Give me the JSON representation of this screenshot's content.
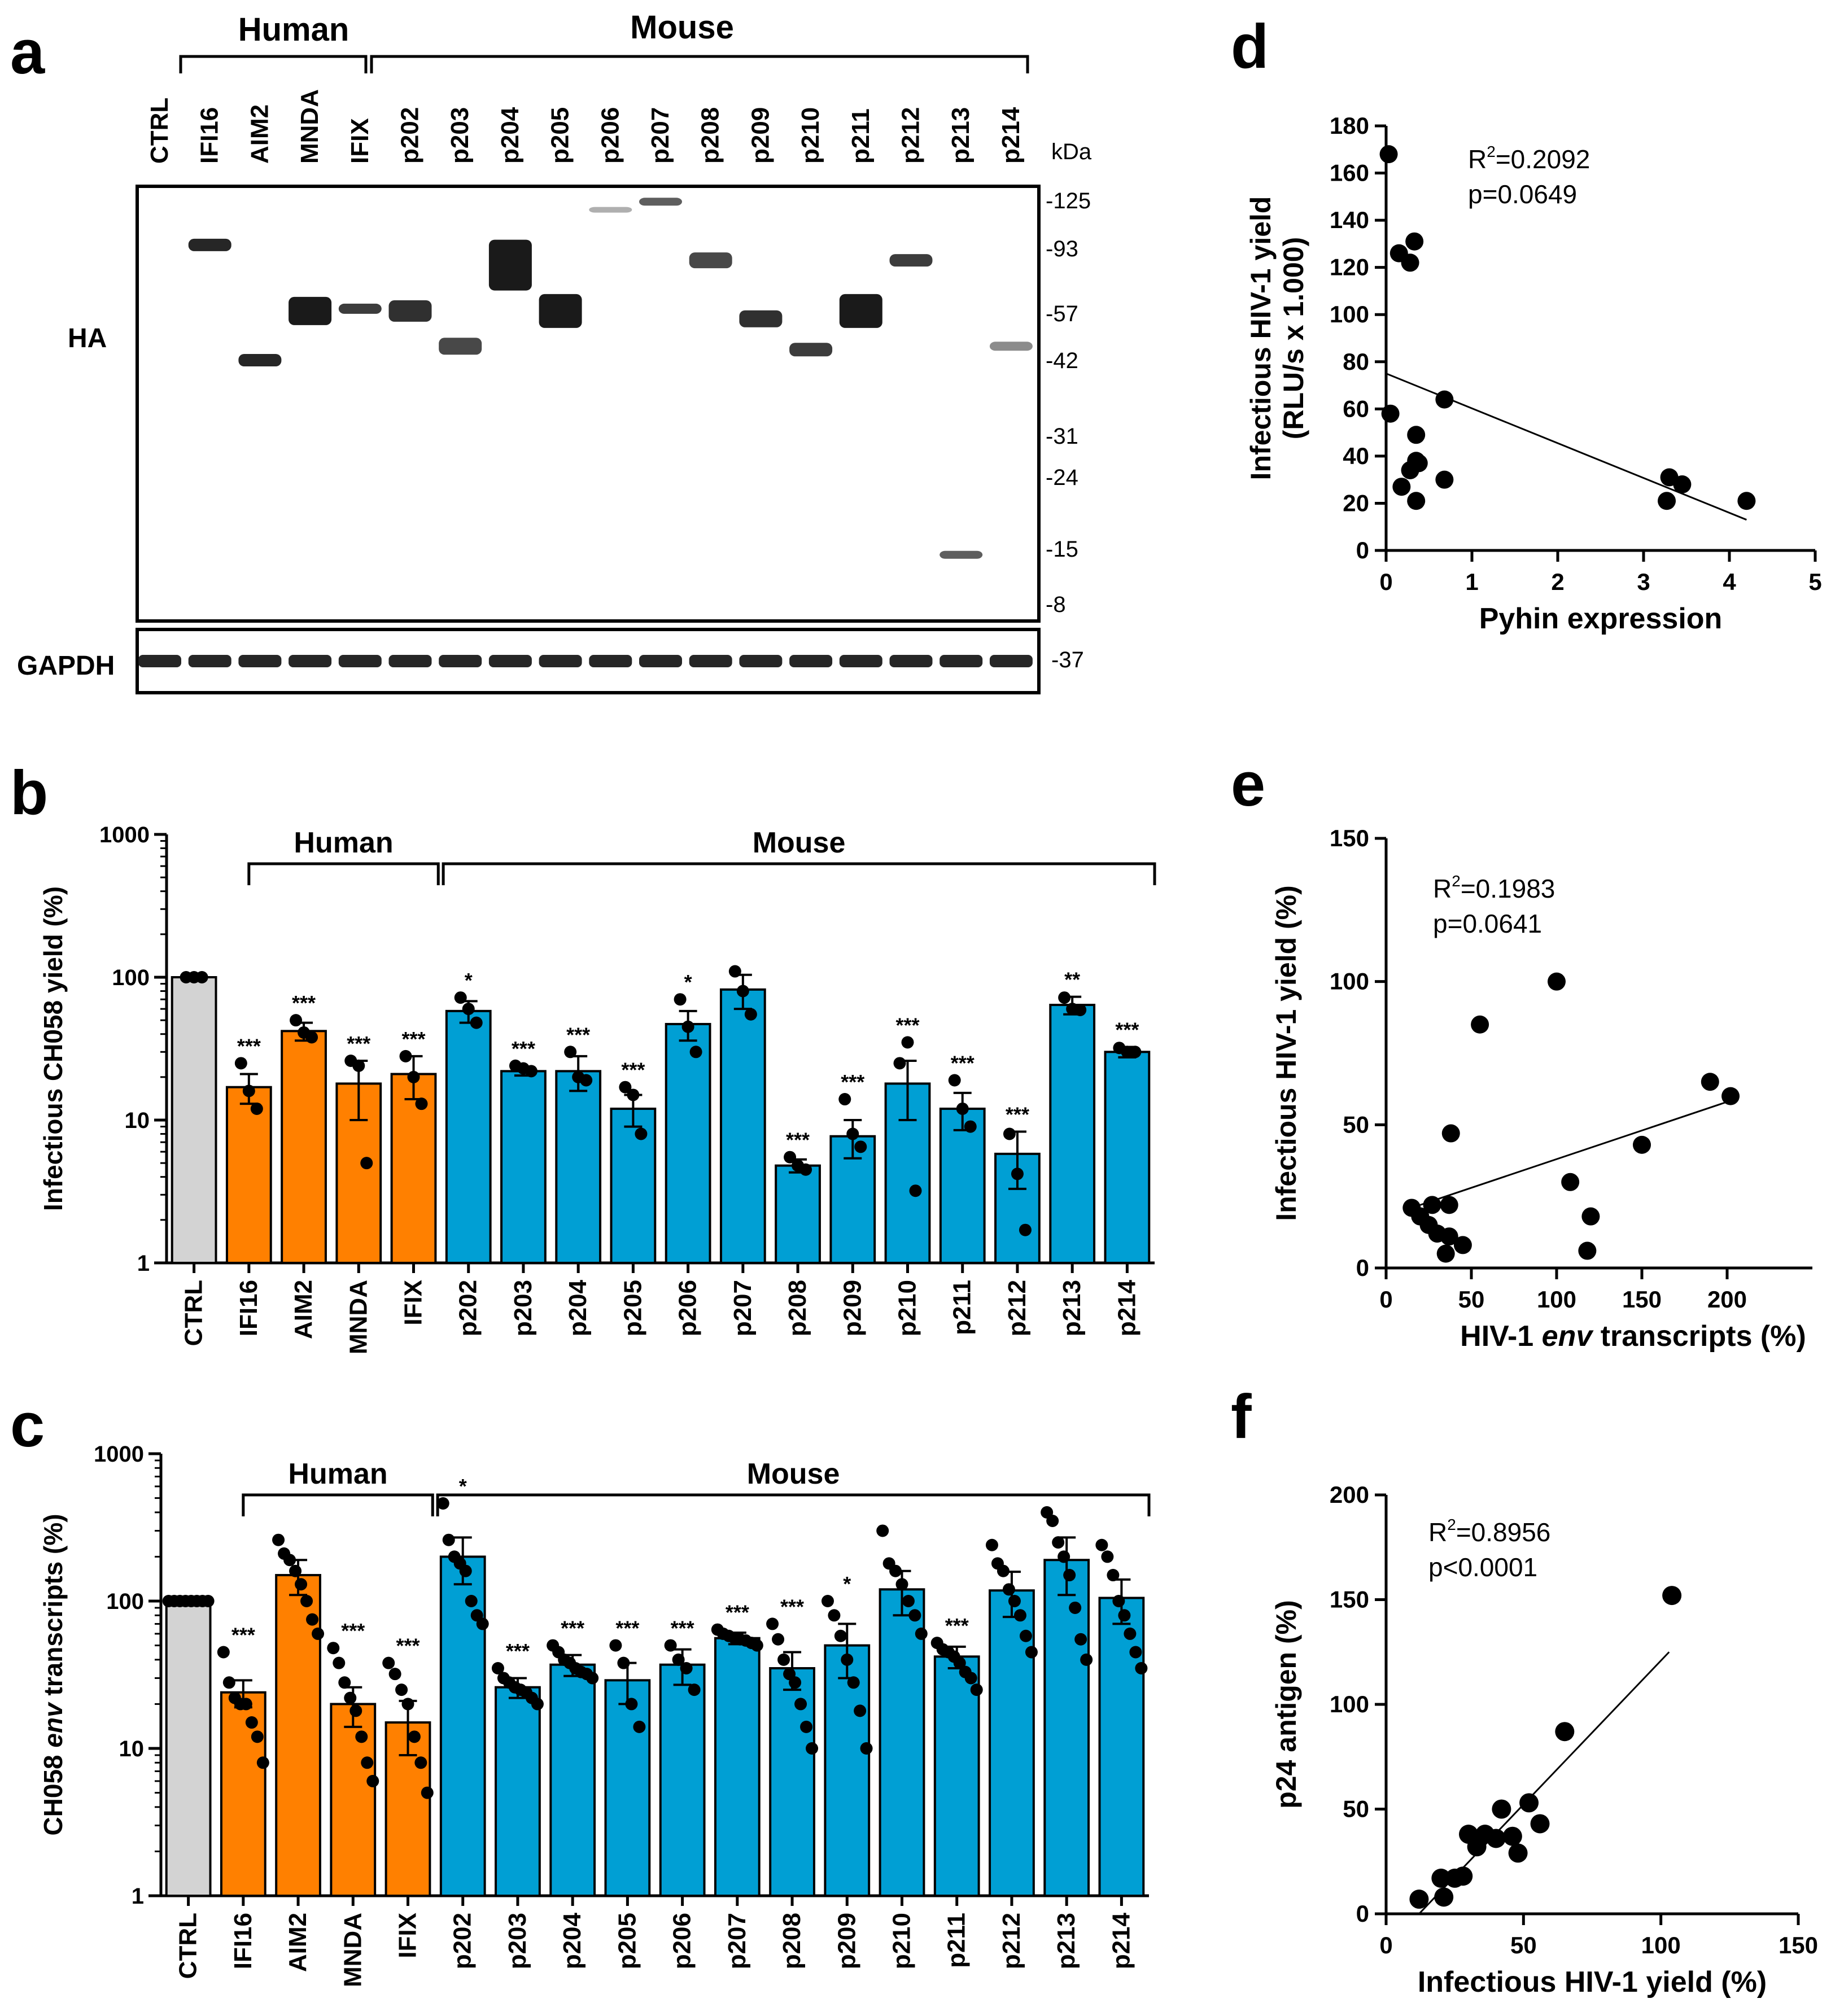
{
  "colors": {
    "ctrl": "#d3d3d3",
    "human": "#ff8000",
    "mouse": "#009fd4",
    "axis": "#000000",
    "band": "#1a1a1a",
    "blot_bg": "#ffffff"
  },
  "panel_letters": {
    "a": "a",
    "b": "b",
    "c": "c",
    "d": "d",
    "e": "e",
    "f": "f"
  },
  "groups": {
    "human": "Human",
    "mouse": "Mouse"
  },
  "blot": {
    "lanes": [
      "CTRL",
      "IFI16",
      "AIM2",
      "MNDA",
      "IFIX",
      "p202",
      "p203",
      "p204",
      "p205",
      "p206",
      "p207",
      "p208",
      "p209",
      "p210",
      "p211",
      "p212",
      "p213",
      "p214"
    ],
    "unit": "kDa",
    "markers_main": [
      "-125",
      "-93",
      "-57",
      "-42",
      "-31",
      "-24",
      "-15",
      "-8"
    ],
    "marker_gapdh": "-37",
    "label_main": "HA",
    "label_gapdh": "GAPDH",
    "main_bands_kda": [
      null,
      95,
      42,
      58,
      59,
      58,
      46,
      82,
      58,
      118,
      124,
      85,
      55,
      45,
      58,
      85,
      14,
      46
    ]
  },
  "chart_data": [
    {
      "panel": "b",
      "type": "bar",
      "yscale": "log",
      "ylim": [
        1,
        1000
      ],
      "yticks": [
        "1",
        "10",
        "100",
        "1000"
      ],
      "ylabel": "Infectious CH058 yield (%)",
      "categories": [
        "CTRL",
        "IFI16",
        "AIM2",
        "MNDA",
        "IFIX",
        "p202",
        "p203",
        "p204",
        "p205",
        "p206",
        "p207",
        "p208",
        "p209",
        "p210",
        "p211",
        "p212",
        "p213",
        "p214"
      ],
      "values": [
        100,
        17,
        42,
        18,
        21,
        58,
        22,
        22,
        12,
        47,
        82,
        4.8,
        7.7,
        18,
        12,
        5.8,
        64,
        30
      ],
      "errors": [
        0,
        4,
        6,
        8,
        7,
        10,
        1.5,
        6,
        3,
        11,
        22,
        0.5,
        2.3,
        8,
        3.5,
        2.5,
        9,
        2.5
      ],
      "points": [
        [
          100,
          100,
          100
        ],
        [
          25,
          16,
          12
        ],
        [
          50,
          41,
          38
        ],
        [
          26,
          24,
          5
        ],
        [
          28,
          20,
          13
        ],
        [
          72,
          60,
          48
        ],
        [
          24,
          23,
          22
        ],
        [
          30,
          20,
          19
        ],
        [
          17,
          15,
          8
        ],
        [
          70,
          45,
          30
        ],
        [
          110,
          80,
          55
        ],
        [
          5.5,
          4.8,
          4.5
        ],
        [
          14,
          8,
          6.5
        ],
        [
          25,
          35,
          3.2
        ],
        [
          19,
          12,
          9
        ],
        [
          8,
          4.2,
          1.7
        ],
        [
          72,
          60,
          59
        ],
        [
          32,
          30,
          30
        ]
      ],
      "significance": [
        "",
        "***",
        "***",
        "***",
        "***",
        "*",
        "***",
        "***",
        "***",
        "*",
        "",
        "***",
        "***",
        "***",
        "***",
        "***",
        "**",
        "***"
      ],
      "groups": [
        {
          "name": "Human",
          "from": 1,
          "to": 4
        },
        {
          "name": "Mouse",
          "from": 5,
          "to": 17
        }
      ]
    },
    {
      "panel": "c",
      "type": "bar",
      "yscale": "log",
      "ylim": [
        1,
        1000
      ],
      "yticks": [
        "1",
        "10",
        "100",
        "1000"
      ],
      "ylabel_pre": "CH058 ",
      "ylabel_italic": "env",
      "ylabel_post": " transcripts (%)",
      "categories": [
        "CTRL",
        "IFI16",
        "AIM2",
        "MNDA",
        "IFIX",
        "p202",
        "p203",
        "p204",
        "p205",
        "p206",
        "p207",
        "p208",
        "p209",
        "p210",
        "p211",
        "p212",
        "p213",
        "p214"
      ],
      "values": [
        100,
        24,
        150,
        20,
        15,
        200,
        26,
        37,
        29,
        37,
        56,
        35,
        50,
        120,
        42,
        118,
        190,
        105
      ],
      "errors": [
        0,
        5,
        40,
        6,
        6,
        70,
        4,
        6,
        9,
        10,
        5,
        10,
        20,
        40,
        7,
        40,
        80,
        35
      ],
      "points": [
        [
          100,
          100,
          100,
          100,
          100,
          100,
          100,
          100
        ],
        [
          45,
          28,
          22,
          20,
          20,
          15,
          12,
          8
        ],
        [
          260,
          210,
          190,
          160,
          130,
          100,
          75,
          60
        ],
        [
          48,
          38,
          28,
          22,
          18,
          12,
          8,
          6
        ],
        [
          38,
          32,
          25,
          20,
          12,
          8,
          5
        ],
        [
          460,
          260,
          200,
          180,
          160,
          100,
          80,
          70
        ],
        [
          35,
          30,
          28,
          26,
          25,
          24,
          22,
          20
        ],
        [
          50,
          45,
          40,
          38,
          35,
          33,
          32,
          30
        ],
        [
          50,
          38,
          20,
          14
        ],
        [
          50,
          40,
          35,
          25
        ],
        [
          64,
          60,
          58,
          56,
          55,
          54,
          52,
          50
        ],
        [
          70,
          55,
          40,
          32,
          28,
          20,
          14,
          10
        ],
        [
          100,
          80,
          58,
          40,
          28,
          18,
          10
        ],
        [
          300,
          180,
          160,
          130,
          100,
          80,
          60
        ],
        [
          52,
          47,
          45,
          42,
          38,
          33,
          30,
          25
        ],
        [
          240,
          180,
          160,
          120,
          100,
          80,
          58,
          45
        ],
        [
          400,
          350,
          250,
          200,
          150,
          90,
          55,
          40
        ],
        [
          240,
          200,
          150,
          100,
          80,
          60,
          45,
          35
        ]
      ],
      "significance": [
        "",
        "***",
        "",
        "***",
        "***",
        "*",
        "***",
        "***",
        "***",
        "***",
        "***",
        "***",
        "*",
        "",
        "***",
        "",
        "",
        ""
      ],
      "groups": [
        {
          "name": "Human",
          "from": 1,
          "to": 4
        },
        {
          "name": "Mouse",
          "from": 5,
          "to": 17
        }
      ]
    },
    {
      "panel": "d",
      "type": "scatter",
      "xlabel": "Pyhin expression",
      "ylabel_line1": "Infectious HIV-1 yield",
      "ylabel_line2": "(RLU/s x 1.000)",
      "xlim": [
        0,
        5
      ],
      "ylim": [
        0,
        180
      ],
      "xticks": [
        0,
        1,
        2,
        3,
        4,
        5
      ],
      "yticks": [
        0,
        20,
        40,
        60,
        80,
        100,
        120,
        140,
        160,
        180
      ],
      "r2_label": "R",
      "r2_sup": "2",
      "r2_value": "=0.2092",
      "p_text": "p=0.0649",
      "points": [
        [
          0.03,
          168
        ],
        [
          0.15,
          126
        ],
        [
          0.33,
          131
        ],
        [
          0.28,
          122
        ],
        [
          0.05,
          58
        ],
        [
          0.35,
          49
        ],
        [
          0.68,
          64
        ],
        [
          0.35,
          38
        ],
        [
          0.28,
          34
        ],
        [
          0.38,
          37
        ],
        [
          0.18,
          27
        ],
        [
          0.35,
          21
        ],
        [
          0.68,
          30
        ],
        [
          3.3,
          31
        ],
        [
          3.27,
          21
        ],
        [
          3.45,
          28
        ],
        [
          4.2,
          21
        ]
      ],
      "fit": [
        [
          0,
          75
        ],
        [
          4.2,
          13
        ]
      ]
    },
    {
      "panel": "e",
      "type": "scatter",
      "xlabel_pre": "HIV-1 ",
      "xlabel_italic": "env",
      "xlabel_post": " transcripts (%)",
      "ylabel": "Infectious HIV-1 yield (%)",
      "xlim": [
        0,
        250
      ],
      "ylim": [
        0,
        150
      ],
      "xticks": [
        0,
        50,
        100,
        150,
        200
      ],
      "yticks": [
        0,
        50,
        100,
        150
      ],
      "r2_label": "R",
      "r2_sup": "2",
      "r2_value": "=0.1983",
      "p_text": "p=0.0641",
      "points": [
        [
          100,
          100
        ],
        [
          55,
          85
        ],
        [
          38,
          47
        ],
        [
          190,
          65
        ],
        [
          202,
          60
        ],
        [
          150,
          43
        ],
        [
          108,
          30
        ],
        [
          120,
          18
        ],
        [
          118,
          6
        ],
        [
          15,
          21
        ],
        [
          20,
          18
        ],
        [
          27,
          22
        ],
        [
          37,
          22
        ],
        [
          25,
          15
        ],
        [
          30,
          12
        ],
        [
          37,
          11
        ],
        [
          45,
          8
        ],
        [
          35,
          5
        ]
      ],
      "fit": [
        [
          20,
          22
        ],
        [
          200,
          58
        ]
      ]
    },
    {
      "panel": "f",
      "type": "scatter",
      "xlabel": "Infectious HIV-1 yield (%)",
      "ylabel": "p24 antigen (%)",
      "xlim": [
        0,
        150
      ],
      "ylim": [
        0,
        200
      ],
      "xticks": [
        0,
        50,
        100,
        150
      ],
      "yticks": [
        0,
        50,
        100,
        150,
        200
      ],
      "r2_label": "R",
      "r2_sup": "2",
      "r2_value": "=0.8956",
      "p_text": "p<0.0001",
      "points": [
        [
          104,
          152
        ],
        [
          65,
          87
        ],
        [
          12,
          7
        ],
        [
          20,
          17
        ],
        [
          21,
          8
        ],
        [
          25,
          17
        ],
        [
          28,
          18
        ],
        [
          30,
          38
        ],
        [
          33,
          32
        ],
        [
          36,
          38
        ],
        [
          40,
          36
        ],
        [
          42,
          50
        ],
        [
          46,
          37
        ],
        [
          48,
          29
        ],
        [
          52,
          53
        ],
        [
          56,
          43
        ]
      ],
      "fit": [
        [
          12,
          0
        ],
        [
          103,
          125
        ]
      ]
    }
  ]
}
